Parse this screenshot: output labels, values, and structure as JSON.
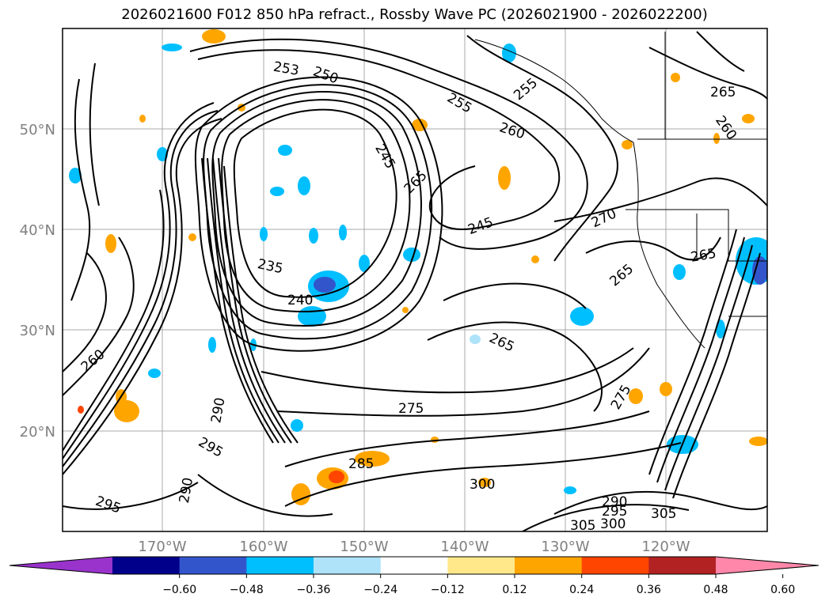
{
  "title": "2026021600 F012 850 hPa refract., Rossby Wave PC (2026021900 - 2026022200)",
  "map": {
    "lat_ticks": [
      "50°N",
      "40°N",
      "30°N",
      "20°N"
    ],
    "lon_ticks": [
      "170°W",
      "160°W",
      "150°W",
      "140°W",
      "130°W",
      "120°W"
    ],
    "contour_labels": [
      "235",
      "240",
      "245",
      "245",
      "250",
      "253",
      "255",
      "255",
      "260",
      "260",
      "260",
      "265",
      "265",
      "265",
      "265",
      "265",
      "270",
      "275",
      "275",
      "285",
      "290",
      "290",
      "290",
      "295",
      "295",
      "295",
      "300",
      "300",
      "305",
      "305"
    ]
  },
  "colorbar": {
    "ticks": [
      "−0.60",
      "−0.48",
      "−0.36",
      "−0.24",
      "−0.12",
      "0.12",
      "0.24",
      "0.36",
      "0.48",
      "0.60"
    ],
    "colors": [
      "#9933cc",
      "#00008b",
      "#3355cc",
      "#00bfff",
      "#aee3fa",
      "#ffffff",
      "#ffe88a",
      "#ffa500",
      "#ff4500",
      "#b22222",
      "#ff88aa"
    ]
  }
}
